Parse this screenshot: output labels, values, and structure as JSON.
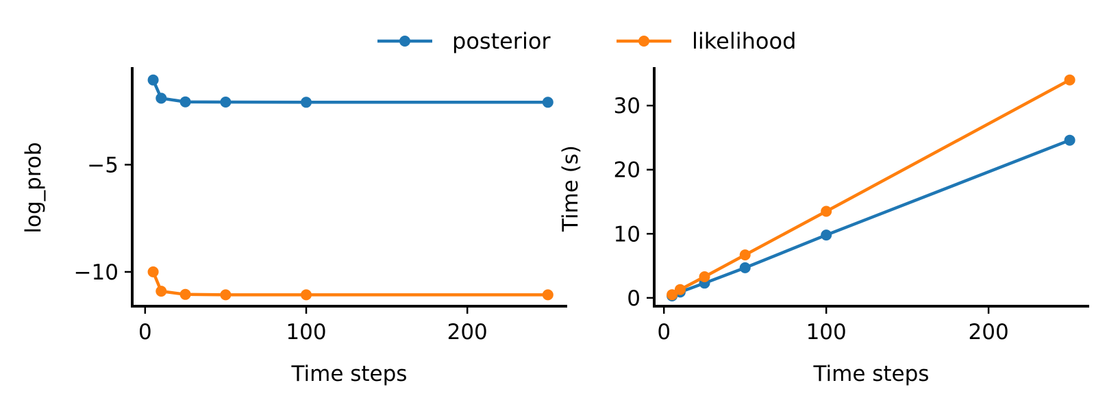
{
  "colors": {
    "posterior": "#1f77b4",
    "likelihood": "#ff7f0e",
    "axis": "#000000",
    "background": "#ffffff"
  },
  "legend": {
    "placement": "top-center",
    "entries": [
      {
        "label": "posterior",
        "series": "posterior"
      },
      {
        "label": "likelihood",
        "series": "likelihood"
      }
    ]
  },
  "chart_data": [
    {
      "type": "line",
      "xlabel": "Time steps",
      "ylabel": "log_prob",
      "xlim": [
        -8,
        262
      ],
      "ylim": [
        -11.6,
        -0.45
      ],
      "xticks": [
        0,
        100,
        200
      ],
      "xtick_labels": [
        "0",
        "100",
        "200"
      ],
      "yticks": [
        -10,
        -5
      ],
      "ytick_labels": [
        "−10",
        "−5"
      ],
      "grid": false,
      "series": [
        {
          "name": "posterior",
          "color_key": "posterior",
          "x": [
            5,
            10,
            25,
            50,
            100,
            250
          ],
          "y": [
            -1.05,
            -1.9,
            -2.07,
            -2.08,
            -2.09,
            -2.09
          ]
        },
        {
          "name": "likelihood",
          "color_key": "likelihood",
          "x": [
            5,
            10,
            25,
            50,
            100,
            250
          ],
          "y": [
            -10.0,
            -10.9,
            -11.05,
            -11.07,
            -11.07,
            -11.07
          ]
        }
      ]
    },
    {
      "type": "line",
      "xlabel": "Time steps",
      "ylabel": "Time (s)",
      "xlim": [
        -6,
        262
      ],
      "ylim": [
        -1.3,
        36
      ],
      "xticks": [
        0,
        100,
        200
      ],
      "xtick_labels": [
        "0",
        "100",
        "200"
      ],
      "yticks": [
        0,
        10,
        20,
        30
      ],
      "ytick_labels": [
        "0",
        "10",
        "20",
        "30"
      ],
      "grid": false,
      "series": [
        {
          "name": "posterior",
          "color_key": "posterior",
          "x": [
            5,
            10,
            25,
            50,
            100,
            250
          ],
          "y": [
            0.3,
            0.9,
            2.3,
            4.7,
            9.8,
            24.6
          ]
        },
        {
          "name": "likelihood",
          "color_key": "likelihood",
          "x": [
            5,
            10,
            25,
            50,
            100,
            250
          ],
          "y": [
            0.5,
            1.3,
            3.3,
            6.7,
            13.5,
            34.0
          ]
        }
      ]
    }
  ]
}
